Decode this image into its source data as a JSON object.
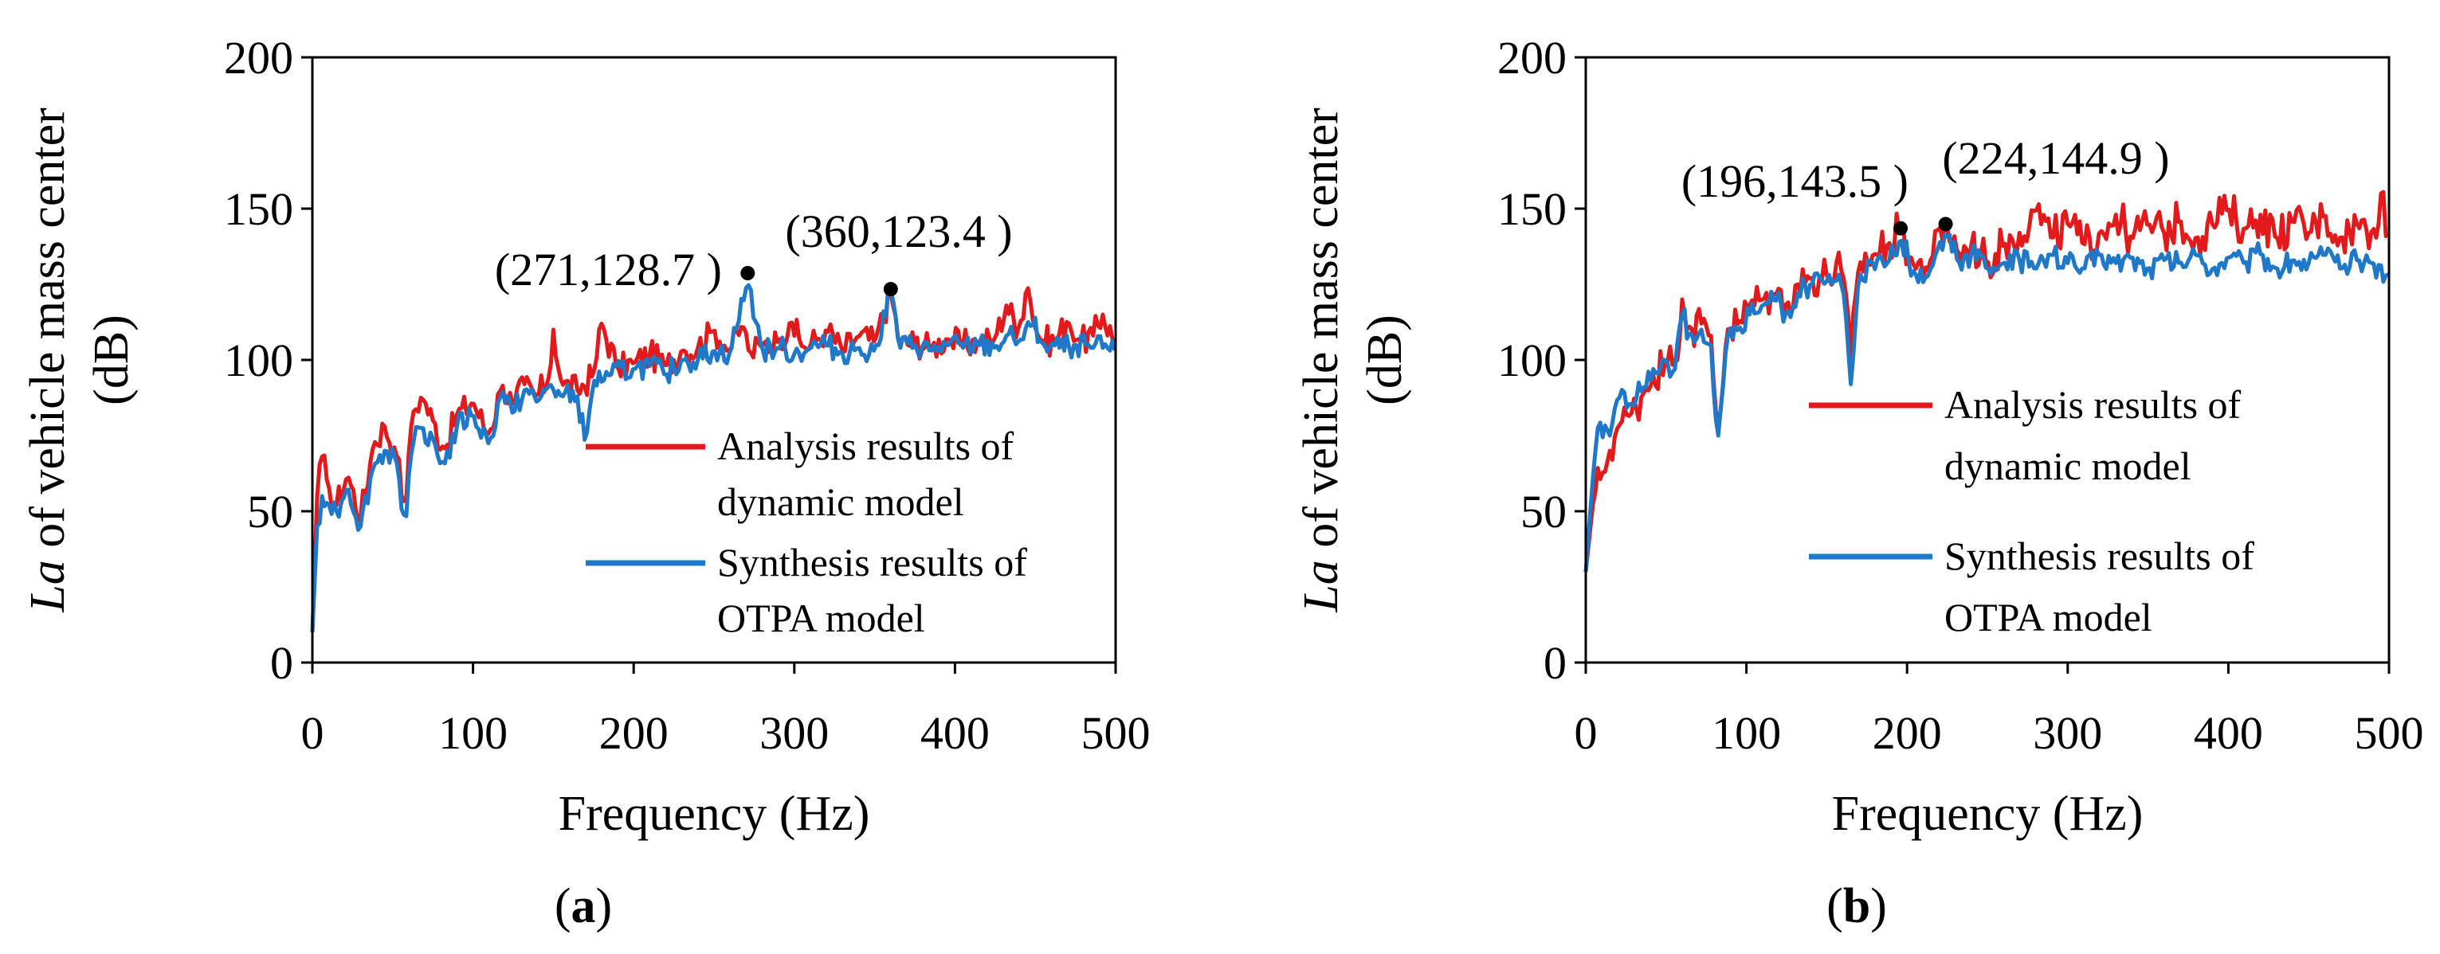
{
  "chart_data": [
    {
      "panel_label": "a",
      "type": "line",
      "title": "",
      "xlabel": "Frequency (Hz)",
      "ylabel_italic": "La",
      "ylabel_rest": " of vehicle mass center",
      "ylabel_line2": "(dB)",
      "xlim": [
        0,
        500
      ],
      "ylim": [
        0,
        200
      ],
      "xticks": [
        0,
        100,
        200,
        300,
        400,
        500
      ],
      "yticks": [
        0,
        50,
        100,
        150,
        200
      ],
      "grid": false,
      "legend_position": "bottom-right",
      "series": [
        {
          "name": "Analysis results of dynamic model",
          "legend_lines": [
            "Analysis results of",
            "dynamic model"
          ],
          "color": "#e31a1c",
          "anchors": [
            [
              0,
              10
            ],
            [
              3,
              55
            ],
            [
              6,
              68
            ],
            [
              10,
              58
            ],
            [
              15,
              52
            ],
            [
              22,
              62
            ],
            [
              30,
              48
            ],
            [
              38,
              72
            ],
            [
              45,
              78
            ],
            [
              52,
              70
            ],
            [
              58,
              50
            ],
            [
              62,
              82
            ],
            [
              68,
              88
            ],
            [
              75,
              80
            ],
            [
              82,
              70
            ],
            [
              90,
              82
            ],
            [
              100,
              86
            ],
            [
              110,
              75
            ],
            [
              118,
              92
            ],
            [
              125,
              85
            ],
            [
              132,
              92
            ],
            [
              140,
              88
            ],
            [
              148,
              95
            ],
            [
              150,
              110
            ],
            [
              155,
              92
            ],
            [
              165,
              90
            ],
            [
              175,
              95
            ],
            [
              180,
              112
            ],
            [
              190,
              97
            ],
            [
              200,
              99
            ],
            [
              210,
              102
            ],
            [
              220,
              98
            ],
            [
              230,
              103
            ],
            [
              240,
              104
            ],
            [
              250,
              110
            ],
            [
              260,
              103
            ],
            [
              268,
              112
            ],
            [
              272,
              102
            ],
            [
              280,
              105
            ],
            [
              290,
              106
            ],
            [
              298,
              113
            ],
            [
              305,
              104
            ],
            [
              315,
              107
            ],
            [
              320,
              110
            ],
            [
              330,
              103
            ],
            [
              340,
              108
            ],
            [
              350,
              106
            ],
            [
              360,
              122
            ],
            [
              366,
              105
            ],
            [
              375,
              106
            ],
            [
              385,
              104
            ],
            [
              395,
              107
            ],
            [
              405,
              105
            ],
            [
              415,
              106
            ],
            [
              425,
              107
            ],
            [
              432,
              118
            ],
            [
              440,
              110
            ],
            [
              445,
              125
            ],
            [
              452,
              107
            ],
            [
              462,
              106
            ],
            [
              470,
              113
            ],
            [
              478,
              106
            ],
            [
              486,
              108
            ],
            [
              492,
              115
            ],
            [
              500,
              105
            ]
          ],
          "noise": 5
        },
        {
          "name": "Synthesis results of OTPA model",
          "legend_lines": [
            "Synthesis results of",
            "OTPA model"
          ],
          "color": "#1f78c8",
          "anchors": [
            [
              0,
              10
            ],
            [
              3,
              45
            ],
            [
              6,
              55
            ],
            [
              10,
              52
            ],
            [
              15,
              50
            ],
            [
              22,
              58
            ],
            [
              30,
              45
            ],
            [
              38,
              65
            ],
            [
              45,
              70
            ],
            [
              52,
              68
            ],
            [
              58,
              45
            ],
            [
              62,
              72
            ],
            [
              68,
              78
            ],
            [
              75,
              74
            ],
            [
              82,
              65
            ],
            [
              90,
              78
            ],
            [
              100,
              82
            ],
            [
              110,
              72
            ],
            [
              118,
              90
            ],
            [
              125,
              82
            ],
            [
              132,
              90
            ],
            [
              140,
              86
            ],
            [
              148,
              92
            ],
            [
              155,
              88
            ],
            [
              165,
              88
            ],
            [
              170,
              72
            ],
            [
              175,
              93
            ],
            [
              185,
              95
            ],
            [
              200,
              97
            ],
            [
              210,
              98
            ],
            [
              220,
              95
            ],
            [
              230,
              100
            ],
            [
              240,
              100
            ],
            [
              250,
              103
            ],
            [
              260,
              102
            ],
            [
              271,
              126
            ],
            [
              280,
              103
            ],
            [
              290,
              104
            ],
            [
              300,
              102
            ],
            [
              310,
              104
            ],
            [
              320,
              105
            ],
            [
              330,
              102
            ],
            [
              340,
              104
            ],
            [
              350,
              103
            ],
            [
              360,
              123
            ],
            [
              366,
              104
            ],
            [
              375,
              105
            ],
            [
              385,
              103
            ],
            [
              395,
              105
            ],
            [
              405,
              104
            ],
            [
              415,
              105
            ],
            [
              425,
              104
            ],
            [
              432,
              108
            ],
            [
              440,
              106
            ],
            [
              448,
              112
            ],
            [
              455,
              105
            ],
            [
              465,
              104
            ],
            [
              475,
              105
            ],
            [
              485,
              104
            ],
            [
              495,
              104
            ],
            [
              500,
              103
            ]
          ],
          "noise": 4
        }
      ],
      "annotations": [
        {
          "label": "(271,128.7 )",
          "x": 271,
          "y": 128.7,
          "align": "left"
        },
        {
          "label": "(360,123.4 )",
          "x": 360,
          "y": 123.4,
          "align": "above"
        }
      ]
    },
    {
      "panel_label": "b",
      "type": "line",
      "title": "",
      "xlabel": "Frequency (Hz)",
      "ylabel_italic": "La",
      "ylabel_rest": " of vehicle mass center",
      "ylabel_line2": "(dB)",
      "xlim": [
        0,
        500
      ],
      "ylim": [
        0,
        200
      ],
      "xticks": [
        0,
        100,
        200,
        300,
        400,
        500
      ],
      "yticks": [
        0,
        50,
        100,
        150,
        200
      ],
      "grid": false,
      "legend_position": "middle-right",
      "series": [
        {
          "name": "Analysis results of dynamic model",
          "legend_lines": [
            "Analysis results of",
            "dynamic model"
          ],
          "color": "#e31a1c",
          "anchors": [
            [
              0,
              30
            ],
            [
              5,
              55
            ],
            [
              10,
              62
            ],
            [
              15,
              70
            ],
            [
              20,
              78
            ],
            [
              28,
              82
            ],
            [
              35,
              88
            ],
            [
              42,
              95
            ],
            [
              50,
              100
            ],
            [
              55,
              98
            ],
            [
              60,
              120
            ],
            [
              65,
              110
            ],
            [
              72,
              112
            ],
            [
              78,
              108
            ],
            [
              82,
              75
            ],
            [
              88,
              110
            ],
            [
              95,
              112
            ],
            [
              102,
              118
            ],
            [
              110,
              120
            ],
            [
              118,
              122
            ],
            [
              125,
              118
            ],
            [
              132,
              125
            ],
            [
              140,
              127
            ],
            [
              150,
              128
            ],
            [
              160,
              130
            ],
            [
              165,
              100
            ],
            [
              170,
              132
            ],
            [
              180,
              135
            ],
            [
              188,
              138
            ],
            [
              196,
              143
            ],
            [
              205,
              130
            ],
            [
              215,
              133
            ],
            [
              224,
              145
            ],
            [
              232,
              135
            ],
            [
              240,
              138
            ],
            [
              250,
              132
            ],
            [
              260,
              138
            ],
            [
              270,
              142
            ],
            [
              280,
              150
            ],
            [
              290,
              140
            ],
            [
              300,
              145
            ],
            [
              310,
              138
            ],
            [
              320,
              142
            ],
            [
              330,
              148
            ],
            [
              340,
              140
            ],
            [
              350,
              145
            ],
            [
              360,
              142
            ],
            [
              370,
              146
            ],
            [
              380,
              140
            ],
            [
              390,
              145
            ],
            [
              400,
              150
            ],
            [
              410,
              143
            ],
            [
              420,
              148
            ],
            [
              430,
              140
            ],
            [
              440,
              146
            ],
            [
              450,
              142
            ],
            [
              460,
              148
            ],
            [
              470,
              140
            ],
            [
              480,
              145
            ],
            [
              490,
              142
            ],
            [
              495,
              155
            ],
            [
              500,
              140
            ]
          ],
          "noise": 7
        },
        {
          "name": "Synthesis results of OTPA model",
          "legend_lines": [
            "Synthesis results of",
            "OTPA model"
          ],
          "color": "#1f78c8",
          "anchors": [
            [
              0,
              30
            ],
            [
              5,
              65
            ],
            [
              8,
              80
            ],
            [
              15,
              75
            ],
            [
              20,
              88
            ],
            [
              28,
              85
            ],
            [
              35,
              90
            ],
            [
              42,
              97
            ],
            [
              50,
              100
            ],
            [
              55,
              95
            ],
            [
              60,
              115
            ],
            [
              65,
              108
            ],
            [
              72,
              110
            ],
            [
              78,
              105
            ],
            [
              82,
              72
            ],
            [
              88,
              108
            ],
            [
              95,
              110
            ],
            [
              102,
              115
            ],
            [
              110,
              118
            ],
            [
              118,
              120
            ],
            [
              125,
              115
            ],
            [
              132,
              122
            ],
            [
              140,
              125
            ],
            [
              150,
              126
            ],
            [
              160,
              125
            ],
            [
              165,
              92
            ],
            [
              170,
              128
            ],
            [
              180,
              130
            ],
            [
              188,
              132
            ],
            [
              196,
              140
            ],
            [
              205,
              128
            ],
            [
              215,
              130
            ],
            [
              224,
              142
            ],
            [
              232,
              132
            ],
            [
              240,
              135
            ],
            [
              250,
              130
            ],
            [
              260,
              132
            ],
            [
              270,
              133
            ],
            [
              280,
              130
            ],
            [
              290,
              135
            ],
            [
              300,
              132
            ],
            [
              310,
              130
            ],
            [
              320,
              135
            ],
            [
              330,
              132
            ],
            [
              340,
              134
            ],
            [
              350,
              130
            ],
            [
              360,
              133
            ],
            [
              370,
              132
            ],
            [
              380,
              135
            ],
            [
              390,
              130
            ],
            [
              400,
              134
            ],
            [
              410,
              132
            ],
            [
              420,
              135
            ],
            [
              430,
              130
            ],
            [
              440,
              133
            ],
            [
              450,
              132
            ],
            [
              460,
              135
            ],
            [
              470,
              130
            ],
            [
              480,
              133
            ],
            [
              490,
              132
            ],
            [
              500,
              128
            ]
          ],
          "noise": 4
        }
      ],
      "annotations": [
        {
          "label": "(196,143.5 )",
          "x": 196,
          "y": 143.5,
          "align": "left"
        },
        {
          "label": "(224,144.9 )",
          "x": 224,
          "y": 144.9,
          "align": "above"
        }
      ]
    }
  ]
}
